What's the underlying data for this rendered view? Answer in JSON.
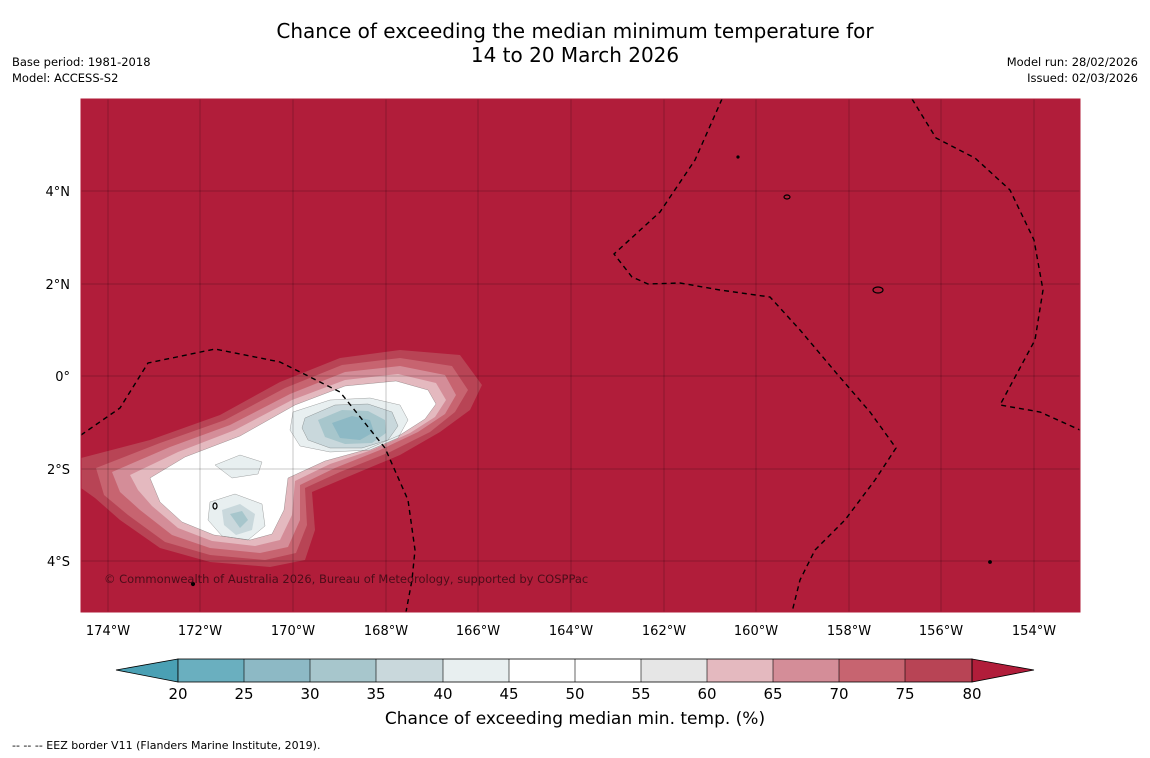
{
  "header": {
    "title_line1": "Chance of exceeding the median minimum temperature for",
    "title_line2": "14 to 20 March 2026",
    "base_period": "Base period: 1981-2018",
    "model": "Model: ACCESS-S2",
    "model_run": "Model run: 28/02/2026",
    "issued": "Issued: 02/03/2026"
  },
  "map": {
    "copyright": "© Commonwealth of Australia 2026, Bureau of Meteorology, supported by COSPPac",
    "lon_labels": [
      "174°W",
      "172°W",
      "170°W",
      "168°W",
      "166°W",
      "164°W",
      "162°W",
      "160°W",
      "158°W",
      "156°W",
      "154°W"
    ],
    "lat_labels": [
      "4°N",
      "2°N",
      "0°",
      "2°S",
      "4°S"
    ],
    "colors": {
      "dominant": "#b11d3a"
    }
  },
  "colorbar": {
    "ticks": [
      "20",
      "25",
      "30",
      "35",
      "40",
      "45",
      "50",
      "55",
      "60",
      "65",
      "70",
      "75",
      "80"
    ],
    "colors": [
      "#4aa0b4",
      "#6aafbf",
      "#8db9c5",
      "#a7c6cc",
      "#c9d8dc",
      "#e8eff0",
      "#ffffff",
      "#ffffff",
      "#e6e6e6",
      "#e4b9bf",
      "#d48d98",
      "#c76470",
      "#b84455",
      "#b11d3a"
    ],
    "title": "Chance of exceeding median min. temp. (%)"
  },
  "footer": {
    "legend": "--  --  -- EEZ border V11 (Flanders Marine Institute, 2019)."
  }
}
